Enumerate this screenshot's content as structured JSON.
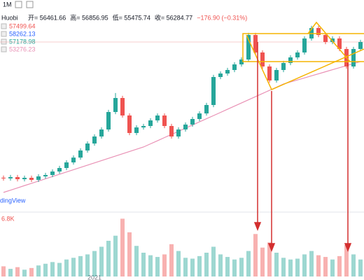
{
  "chart_data": {
    "type": "candlestick",
    "exchange": "Huobi",
    "interval": "1M",
    "ohlc_labels": [
      "开= 56461.66",
      "高= 56856.95",
      "低= 55475.74",
      "收= 56284.77"
    ],
    "change_label": "−176.90 (−0.31%)",
    "legend_values": [
      "57499.64",
      "58262.13",
      "57178.98",
      "53276.23"
    ],
    "watermark": "dingView",
    "volume_label": "6.8K",
    "x_label": "2021",
    "up_color": "#26a69a",
    "down_color": "#ef5350",
    "ma_color": "#e991b5",
    "ylim": [
      9200,
      67700
    ],
    "volume_ylim": [
      0,
      7000
    ],
    "open": [
      18200,
      18000,
      18370,
      17780,
      18170,
      17590,
      18560,
      18950,
      19920,
      20900,
      22460,
      23800,
      25780,
      27720,
      29680,
      31630,
      36500,
      40400,
      35530,
      30650,
      32200,
      32600,
      34160,
      35520,
      32600,
      29680,
      31630,
      33000,
      34550,
      36100,
      38450,
      46250,
      47220,
      48200,
      49760,
      51120,
      57950,
      53080,
      49180,
      45280,
      48200,
      50150,
      51710,
      53080,
      56980,
      59900,
      57950,
      56000,
      56980,
      54050,
      49180,
      54050
    ],
    "high": [
      18800,
      18970,
      18970,
      18770,
      18770,
      19160,
      19550,
      20520,
      21500,
      23060,
      24400,
      26380,
      28320,
      30280,
      32230,
      37100,
      41800,
      41000,
      36130,
      32800,
      33200,
      34760,
      36120,
      36120,
      33200,
      32230,
      33600,
      35150,
      36700,
      39050,
      46850,
      47820,
      48800,
      50360,
      51720,
      58550,
      58550,
      53680,
      49780,
      48800,
      50750,
      52310,
      53680,
      57580,
      60500,
      60500,
      58550,
      57580,
      57580,
      54650,
      54650,
      56600
    ],
    "low": [
      17400,
      17400,
      17180,
      17180,
      16990,
      16990,
      17960,
      18350,
      19320,
      20300,
      21860,
      23200,
      25180,
      27120,
      29080,
      31030,
      35900,
      34930,
      30050,
      30050,
      31600,
      32000,
      33560,
      32000,
      29080,
      29080,
      31030,
      32400,
      33950,
      35500,
      37850,
      45650,
      46620,
      47600,
      49160,
      50520,
      52480,
      48580,
      44680,
      44680,
      47600,
      49550,
      51110,
      52480,
      56380,
      57350,
      55400,
      55400,
      53450,
      48580,
      48580,
      53450
    ],
    "close": [
      18000,
      18370,
      17780,
      18170,
      17590,
      18560,
      18950,
      19920,
      20900,
      22460,
      23800,
      25780,
      27720,
      29680,
      31630,
      36500,
      40400,
      35530,
      30650,
      32200,
      32600,
      34160,
      35520,
      32600,
      29680,
      31630,
      33000,
      34550,
      36100,
      38450,
      46250,
      47220,
      48200,
      49760,
      51120,
      57950,
      53080,
      49180,
      45280,
      48200,
      50150,
      51710,
      53080,
      56980,
      59900,
      57950,
      56000,
      56980,
      54050,
      49180,
      54050,
      56000
    ],
    "volume": [
      1200,
      900,
      1100,
      800,
      1000,
      1300,
      1500,
      1700,
      1600,
      2000,
      2200,
      2400,
      2600,
      3000,
      3500,
      4200,
      4800,
      6800,
      5200,
      3600,
      2800,
      2500,
      2300,
      2600,
      3800,
      3000,
      2200,
      2100,
      2400,
      2800,
      3500,
      2600,
      2300,
      2000,
      2200,
      3000,
      5000,
      3400,
      4000,
      2800,
      2200,
      2000,
      2100,
      2600,
      3000,
      2500,
      2300,
      2000,
      2400,
      3700,
      2600,
      2000
    ],
    "ma": [
      14100,
      14730,
      15360,
      16000,
      16630,
      17260,
      17900,
      18530,
      19160,
      19790,
      20430,
      21060,
      21690,
      22320,
      22960,
      23590,
      24220,
      24860,
      25490,
      26120,
      26750,
      27630,
      28500,
      29380,
      30250,
      31130,
      32000,
      32880,
      33750,
      34630,
      35500,
      36380,
      37260,
      38140,
      39020,
      39900,
      40780,
      41660,
      42540,
      43420,
      44300,
      44870,
      45440,
      46000,
      46570,
      47140,
      47710,
      48280,
      48850,
      49420,
      49990,
      50560
    ]
  }
}
